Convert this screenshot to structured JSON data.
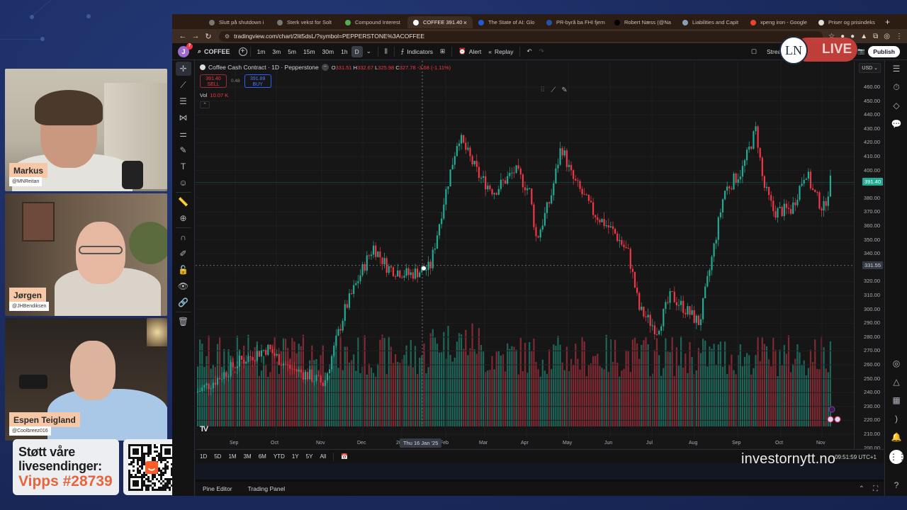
{
  "stream": {
    "participants": [
      {
        "name": "Markus",
        "handle": "@MNReitan"
      },
      {
        "name": "Jørgen",
        "handle": "@JHBendiksen"
      },
      {
        "name": "Espen Teigland",
        "handle": "@Coolbreez016"
      }
    ],
    "donation": {
      "line1": "Støtt våre",
      "line2": "livesendinger:",
      "line3": "Vipps #28739"
    },
    "live_label": "LIVE",
    "logo_text": "LN",
    "watermark": "investornytt.no"
  },
  "browser": {
    "tabs": [
      {
        "title": "Slutt på shutdown i",
        "color": "#777777",
        "active": false
      },
      {
        "title": "Sterk vekst for Solt",
        "color": "#777777",
        "active": false
      },
      {
        "title": "Compound Interest",
        "color": "#4caf50",
        "active": false
      },
      {
        "title": "COFFEE 391.40",
        "color": "#ffffff",
        "active": true
      },
      {
        "title": "The State of AI: Glo",
        "color": "#1e5bd6",
        "active": false
      },
      {
        "title": "PR-byrå ba FHI fjern",
        "color": "#2255aa",
        "active": false
      },
      {
        "title": "Robert Næss (@Na",
        "color": "#000000",
        "active": false
      },
      {
        "title": "Liabilities and Capit",
        "color": "#88a0b8",
        "active": false
      },
      {
        "title": "xpeng iron - Google",
        "color": "#ea4335",
        "active": false
      },
      {
        "title": "Priser og prisindeks",
        "color": "#dddddd",
        "active": false
      }
    ],
    "url": "tradingview.com/chart/2lit5dsL/?symbol=PEPPERSTONE%3ACOFFEE"
  },
  "toolbar": {
    "avatar_letter": "J",
    "notifications": "7",
    "symbol": "COFFEE",
    "intervals": [
      "1m",
      "3m",
      "5m",
      "15m",
      "30m",
      "1h",
      "D"
    ],
    "active_interval": "D",
    "indicators_label": "Indicators",
    "alert_label": "Alert",
    "replay_label": "Replay",
    "stream_label": "Strea",
    "publish_label": "Publish"
  },
  "legend": {
    "title": "Coffee Cash Contract · 1D · Pepperstone",
    "open": "331.51",
    "high": "332.67",
    "low": "325.98",
    "close": "327.78",
    "change": "-3.68 (-1.11%)",
    "sell_price": "391.40",
    "sell_label": "SELL",
    "spread": "0.48",
    "buy_price": "391.88",
    "buy_label": "BUY",
    "vol_label": "Vol",
    "vol_value": "10.07 K"
  },
  "price_axis": {
    "currency": "USD",
    "labels": [
      "460.00",
      "450.00",
      "440.00",
      "430.00",
      "420.00",
      "410.00",
      "400.00",
      "390.00",
      "380.00",
      "370.00",
      "360.00",
      "350.00",
      "340.00",
      "330.00",
      "320.00",
      "310.00",
      "300.00",
      "290.00",
      "280.00",
      "270.00",
      "260.00",
      "250.00",
      "240.00",
      "230.00",
      "220.00",
      "210.00",
      "200.00"
    ],
    "last_price": "391.40",
    "crosshair_price": "331.55"
  },
  "time_axis": {
    "labels": [
      "Sep",
      "Oct",
      "Nov",
      "Dec",
      "2025",
      "Feb",
      "Mar",
      "Apr",
      "May",
      "Jun",
      "Jul",
      "Aug",
      "Sep",
      "Oct",
      "Nov"
    ],
    "crosshair_date": "Thu 16 Jan '25"
  },
  "range_bar": {
    "ranges": [
      "1D",
      "5D",
      "1M",
      "3M",
      "6M",
      "YTD",
      "1Y",
      "5Y",
      "All"
    ],
    "time": "09:51:59 UTC+1"
  },
  "bottom_panel": {
    "tabs": [
      "Pine Editor",
      "Trading Panel"
    ]
  },
  "colors": {
    "up": "#22ab94",
    "down": "#f23645",
    "volume_up": "#1f6e61",
    "volume_down": "#8c2b35",
    "last_price_bg": "#22ab94"
  },
  "chart_data": {
    "type": "candlestick",
    "title": "Coffee Cash Contract · 1D · Pepperstone",
    "xlabel": "",
    "ylabel": "USD",
    "ylim": [
      200,
      465
    ],
    "x_labels": [
      "Sep '24",
      "Oct",
      "Nov",
      "Dec",
      "Jan '25",
      "Feb",
      "Mar",
      "Apr",
      "May",
      "Jun",
      "Jul",
      "Aug",
      "Sep",
      "Oct",
      "Nov"
    ],
    "close_path": [
      {
        "month": "Sep '24",
        "close": 245
      },
      {
        "month": "Oct",
        "close": 270
      },
      {
        "month": "Nov",
        "close": 250
      },
      {
        "month": "Dec",
        "close": 330
      },
      {
        "month": "Jan '25",
        "close": 325
      },
      {
        "month": "Feb",
        "close": 425
      },
      {
        "month": "Mar",
        "close": 385
      },
      {
        "month": "Apr",
        "close": 370
      },
      {
        "month": "May",
        "close": 415
      },
      {
        "month": "Jun",
        "close": 345
      },
      {
        "month": "Jul",
        "close": 285
      },
      {
        "month": "Aug",
        "close": 310
      },
      {
        "month": "Sep",
        "close": 390
      },
      {
        "month": "Oct",
        "close": 375
      },
      {
        "month": "Nov",
        "close": 391.4
      }
    ],
    "last_price": 391.4,
    "crosshair": {
      "date": "Thu 16 Jan '25",
      "price": 331.55
    },
    "grid": true
  }
}
